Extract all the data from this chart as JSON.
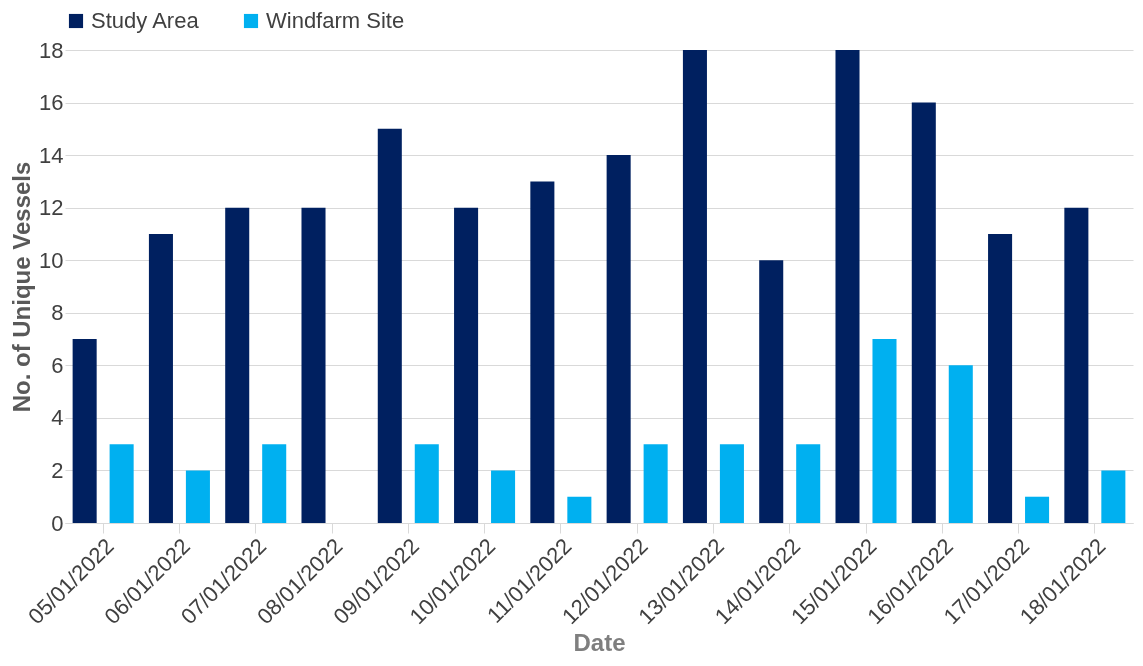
{
  "chart_data": {
    "type": "bar",
    "xlabel": "Date",
    "ylabel": "No. of Unique Vessels",
    "categories": [
      "05/01/2022",
      "06/01/2022",
      "07/01/2022",
      "08/01/2022",
      "09/01/2022",
      "10/01/2022",
      "11/01/2022",
      "12/01/2022",
      "13/01/2022",
      "14/01/2022",
      "15/01/2022",
      "16/01/2022",
      "17/01/2022",
      "18/01/2022"
    ],
    "series": [
      {
        "name": "Study Area",
        "color": "#002060",
        "values": [
          7,
          11,
          12,
          12,
          15,
          12,
          13,
          14,
          18,
          10,
          18,
          16,
          11,
          12
        ]
      },
      {
        "name": "Windfarm Site",
        "color": "#00b0f0",
        "values": [
          3,
          2,
          3,
          null,
          3,
          2,
          1,
          3,
          3,
          3,
          7,
          6,
          1,
          2
        ]
      }
    ],
    "ylim": [
      0,
      18
    ],
    "yticks": [
      0,
      2,
      4,
      6,
      8,
      10,
      12,
      14,
      16,
      18
    ],
    "grid": "y",
    "legend": "top"
  }
}
